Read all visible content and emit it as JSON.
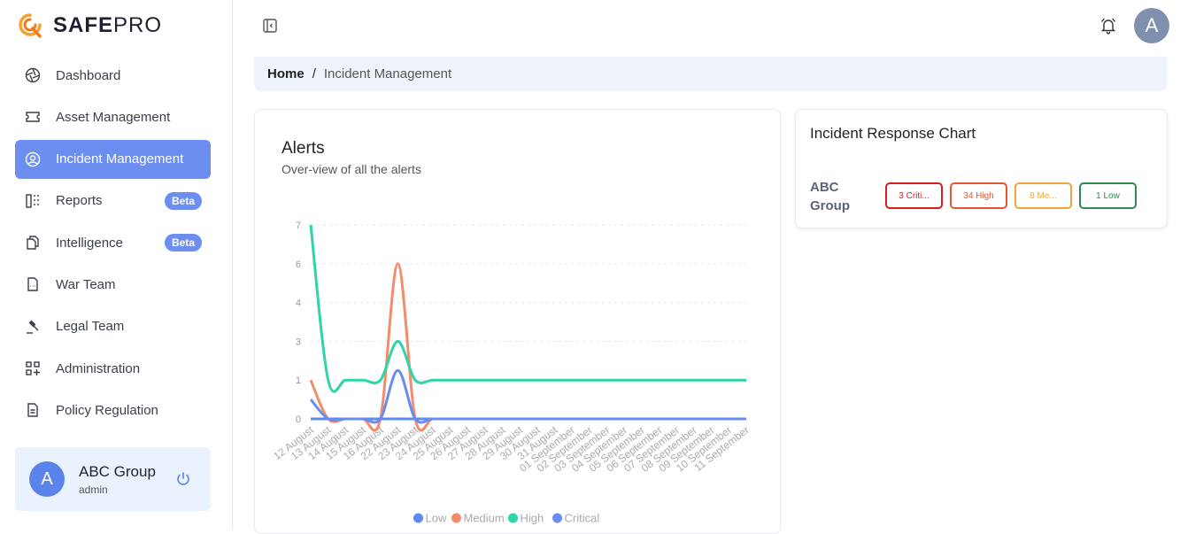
{
  "brand": {
    "name_bold": "SAFE",
    "name_light": "PRO"
  },
  "nav": {
    "items": [
      {
        "label": "Dashboard",
        "icon": "aperture-icon"
      },
      {
        "label": "Asset Management",
        "icon": "ticket-icon"
      },
      {
        "label": "Incident Management",
        "icon": "user-circle-icon",
        "active": true
      },
      {
        "label": "Reports",
        "icon": "columns-icon",
        "badge": "Beta"
      },
      {
        "label": "Intelligence",
        "icon": "copy-icon",
        "badge": "Beta"
      },
      {
        "label": "War Team",
        "icon": "file-dots-icon"
      },
      {
        "label": "Legal Team",
        "icon": "gavel-icon"
      },
      {
        "label": "Administration",
        "icon": "apps-add-icon"
      },
      {
        "label": "Policy Regulation",
        "icon": "file-text-icon"
      }
    ]
  },
  "user": {
    "initial": "A",
    "name": "ABC Group",
    "role": "admin"
  },
  "topbar": {
    "avatar_initial": "A"
  },
  "breadcrumb": {
    "home": "Home",
    "separator": "/",
    "current": "Incident Management"
  },
  "alerts": {
    "title": "Alerts",
    "subtitle": "Over-view of all the alerts"
  },
  "response": {
    "title": "Incident Response Chart",
    "group": "ABC Group",
    "severities": [
      {
        "label": "3 Criti...",
        "color": "#d91c1c"
      },
      {
        "label": "34 High",
        "color": "#e8542f"
      },
      {
        "label": "8 Me...",
        "color": "#f2a53a"
      },
      {
        "label": "1 Low",
        "color": "#2b8a4f"
      }
    ]
  },
  "chart_data": {
    "type": "line",
    "title": "Alerts",
    "x": [
      "12 August",
      "13 August",
      "14 August",
      "15 August",
      "16 August",
      "22 August",
      "23 August",
      "24 August",
      "25 August",
      "26 August",
      "27 August",
      "28 August",
      "29 August",
      "30 August",
      "31 August",
      "01 September",
      "02 September",
      "03 September",
      "04 September",
      "05 September",
      "06 September",
      "07 September",
      "08 September",
      "09 September",
      "10 September",
      "11 September"
    ],
    "y_ticks": [
      0,
      1,
      3,
      4,
      6,
      7
    ],
    "series": [
      {
        "name": "Low",
        "color": "#5b8def",
        "values": [
          0,
          0,
          0,
          0,
          0,
          0,
          0,
          0,
          0,
          0,
          0,
          0,
          0,
          0,
          0,
          0,
          0,
          0,
          0,
          0,
          0,
          0,
          0,
          0,
          0,
          0
        ]
      },
      {
        "name": "Medium",
        "color": "#f28c6b",
        "values": [
          1,
          0,
          0,
          0,
          0,
          6,
          0,
          0,
          0,
          0,
          0,
          0,
          0,
          0,
          0,
          0,
          0,
          0,
          0,
          0,
          0,
          0,
          0,
          0,
          0,
          0
        ]
      },
      {
        "name": "High",
        "color": "#2fd4a8",
        "values": [
          7,
          1,
          1,
          1,
          1,
          3,
          1,
          1,
          1,
          1,
          1,
          1,
          1,
          1,
          1,
          1,
          1,
          1,
          1,
          1,
          1,
          1,
          1,
          1,
          1,
          1
        ]
      },
      {
        "name": "Critical",
        "color": "#6a8cf2",
        "values": [
          0.5,
          0,
          0,
          0,
          0,
          1.5,
          0,
          0,
          0,
          0,
          0,
          0,
          0,
          0,
          0,
          0,
          0,
          0,
          0,
          0,
          0,
          0,
          0,
          0,
          0,
          0
        ]
      }
    ],
    "legend": "bottom"
  }
}
